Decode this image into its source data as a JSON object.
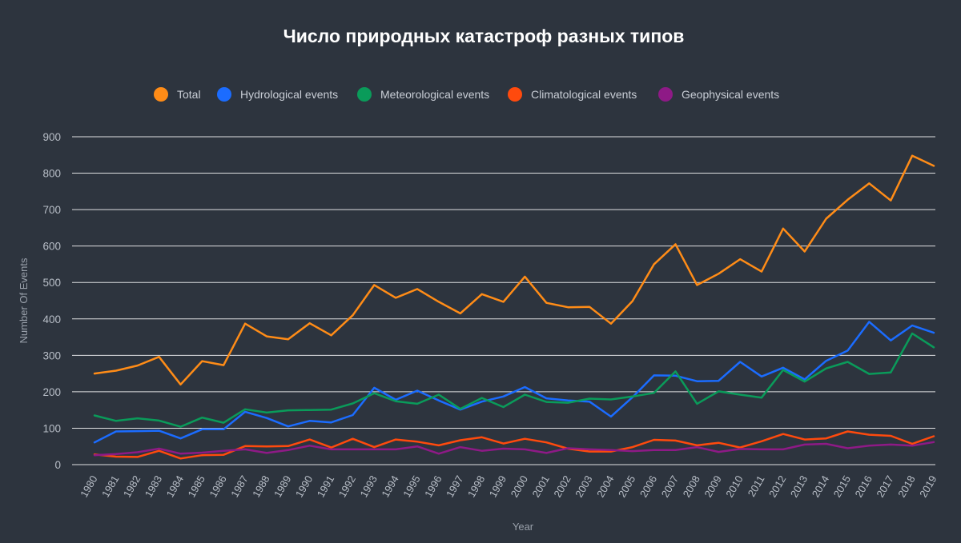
{
  "chart_data": {
    "type": "line",
    "title": "Число природных катастроф разных типов",
    "xlabel": "Year",
    "ylabel": "Number Of Events",
    "ylim": [
      0,
      900
    ],
    "yticks": [
      0,
      100,
      200,
      300,
      400,
      500,
      600,
      700,
      800,
      900
    ],
    "grid": true,
    "legend_position": "top",
    "x": [
      "1980",
      "1981",
      "1982",
      "1983",
      "1984",
      "1985",
      "1986",
      "1987",
      "1988",
      "1989",
      "1990",
      "1991",
      "1992",
      "1993",
      "1994",
      "1995",
      "1996",
      "1997",
      "1998",
      "1999",
      "2000",
      "2001",
      "2002",
      "2003",
      "2004",
      "2005",
      "2006",
      "2007",
      "2008",
      "2009",
      "2010",
      "2011",
      "2012",
      "2013",
      "2014",
      "2015",
      "2016",
      "2017",
      "2018",
      "2019"
    ],
    "series": [
      {
        "name": "Total",
        "color": "#ff8c17",
        "values": [
          250,
          258,
          272,
          296,
          220,
          284,
          273,
          387,
          352,
          344,
          388,
          355,
          410,
          493,
          458,
          482,
          447,
          415,
          468,
          447,
          516,
          444,
          432,
          433,
          387,
          449,
          550,
          605,
          493,
          524,
          564,
          530,
          648,
          585,
          675,
          727,
          772,
          725,
          848,
          820
        ]
      },
      {
        "name": "Hydrological events",
        "color": "#1b6cff",
        "values": [
          61,
          91,
          92,
          93,
          72,
          97,
          97,
          145,
          128,
          105,
          120,
          116,
          136,
          211,
          178,
          203,
          176,
          151,
          173,
          187,
          213,
          182,
          176,
          173,
          132,
          185,
          245,
          244,
          229,
          230,
          282,
          242,
          266,
          234,
          285,
          313,
          392,
          341,
          382,
          362
        ]
      },
      {
        "name": "Meteorological events",
        "color": "#0a9b5a",
        "values": [
          135,
          120,
          127,
          121,
          104,
          129,
          115,
          152,
          143,
          149,
          150,
          151,
          168,
          196,
          174,
          167,
          192,
          153,
          183,
          158,
          192,
          172,
          170,
          181,
          179,
          187,
          197,
          256,
          167,
          201,
          192,
          184,
          260,
          228,
          264,
          282,
          249,
          253,
          360,
          322
        ]
      },
      {
        "name": "Climatological events",
        "color": "#ff4a0d",
        "values": [
          28,
          22,
          21,
          38,
          17,
          26,
          27,
          51,
          50,
          51,
          69,
          47,
          71,
          48,
          69,
          63,
          53,
          67,
          75,
          58,
          71,
          61,
          44,
          36,
          36,
          48,
          68,
          66,
          53,
          60,
          47,
          64,
          84,
          69,
          72,
          91,
          82,
          79,
          57,
          78
        ]
      },
      {
        "name": "Geophysical events",
        "color": "#8e1a86",
        "values": [
          26,
          29,
          34,
          44,
          30,
          33,
          38,
          42,
          32,
          40,
          52,
          42,
          42,
          42,
          42,
          50,
          30,
          48,
          38,
          44,
          42,
          32,
          45,
          42,
          40,
          37,
          40,
          40,
          48,
          35,
          43,
          42,
          42,
          55,
          57,
          45,
          52,
          55,
          52,
          62
        ]
      }
    ]
  }
}
